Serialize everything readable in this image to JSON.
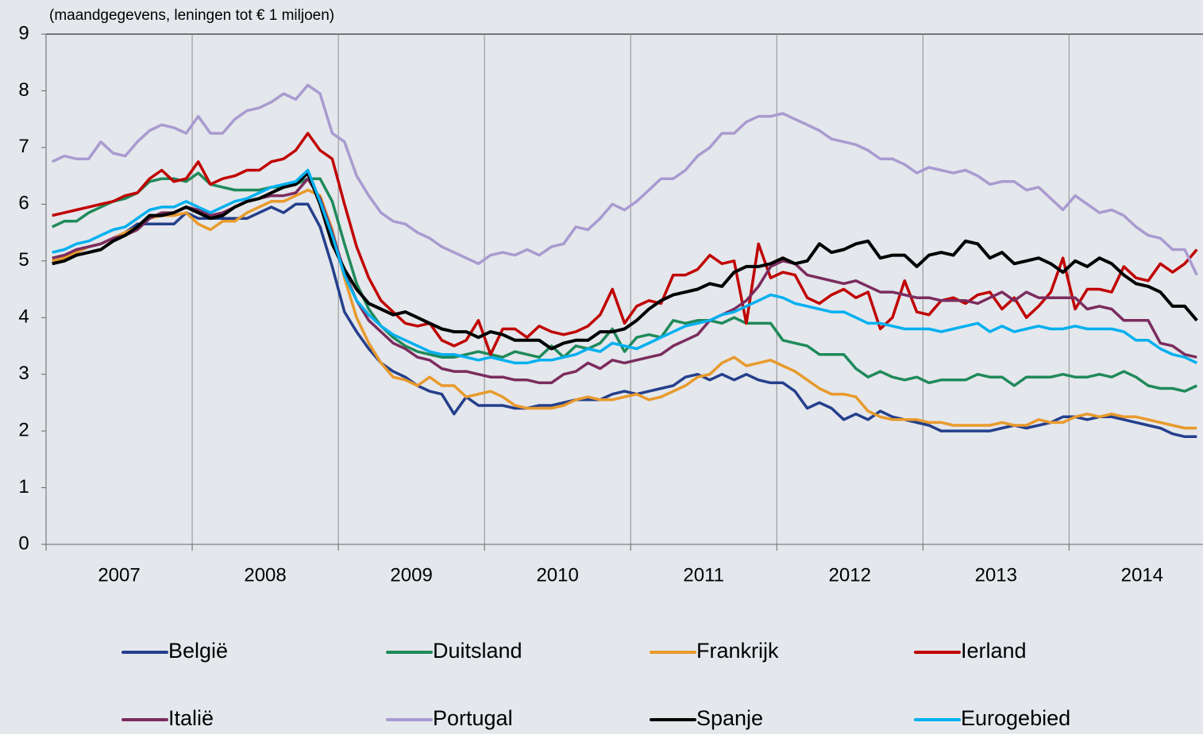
{
  "chart_data": {
    "type": "line",
    "title": "(maandgegevens, leningen tot € 1 miljoen)",
    "categories": [
      null,
      null,
      null,
      null,
      null,
      null,
      "2007",
      null,
      null,
      null,
      null,
      null,
      null,
      null,
      null,
      null,
      null,
      null,
      "2008",
      null,
      null,
      null,
      null,
      null,
      null,
      null,
      null,
      null,
      null,
      null,
      "2009",
      null,
      null,
      null,
      null,
      null,
      null,
      null,
      null,
      null,
      null,
      null,
      "2010",
      null,
      null,
      null,
      null,
      null,
      null,
      null,
      null,
      null,
      null,
      null,
      "2011",
      null,
      null,
      null,
      null,
      null,
      null,
      null,
      null,
      null,
      null,
      null,
      "2012",
      null,
      null,
      null,
      null,
      null,
      null,
      null,
      null,
      null,
      null,
      null,
      "2013",
      null,
      null,
      null,
      null,
      null,
      null,
      null,
      null,
      null,
      null,
      null,
      "2014",
      null,
      null,
      null,
      null
    ],
    "ylim": [
      0,
      9
    ],
    "yticks": [
      0,
      1,
      2,
      3,
      4,
      5,
      6,
      7,
      8,
      9
    ],
    "series": [
      {
        "name": "België",
        "color": "#243f8c",
        "values": [
          5.0,
          5.05,
          5.15,
          5.25,
          5.3,
          5.4,
          5.5,
          5.65,
          5.65,
          5.65,
          5.65,
          5.85,
          5.75,
          5.75,
          5.75,
          5.75,
          5.75,
          5.85,
          5.95,
          5.85,
          6.0,
          6.0,
          5.6,
          4.9,
          4.1,
          3.75,
          3.45,
          3.2,
          3.05,
          2.95,
          2.8,
          2.7,
          2.65,
          2.3,
          2.6,
          2.45,
          2.45,
          2.45,
          2.4,
          2.4,
          2.45,
          2.45,
          2.5,
          2.55,
          2.55,
          2.55,
          2.65,
          2.7,
          2.65,
          2.7,
          2.75,
          2.8,
          2.95,
          3.0,
          2.9,
          3.0,
          2.9,
          3.0,
          2.9,
          2.85,
          2.85,
          2.7,
          2.4,
          2.5,
          2.4,
          2.2,
          2.3,
          2.2,
          2.35,
          2.25,
          2.2,
          2.15,
          2.1,
          2.0,
          2.0,
          2.0,
          2.0,
          2.0,
          2.05,
          2.1,
          2.05,
          2.1,
          2.15,
          2.25,
          2.25,
          2.2,
          2.25,
          2.25,
          2.2,
          2.15,
          2.1,
          2.05,
          1.95,
          1.9,
          1.9
        ]
      },
      {
        "name": "Duitsland",
        "color": "#1f8a5a",
        "values": [
          5.6,
          5.7,
          5.7,
          5.85,
          5.95,
          6.05,
          6.1,
          6.2,
          6.4,
          6.45,
          6.45,
          6.4,
          6.55,
          6.35,
          6.3,
          6.25,
          6.25,
          6.25,
          6.3,
          6.3,
          6.35,
          6.45,
          6.45,
          6.05,
          5.3,
          4.6,
          4.15,
          3.85,
          3.65,
          3.5,
          3.4,
          3.35,
          3.3,
          3.3,
          3.35,
          3.4,
          3.35,
          3.3,
          3.4,
          3.35,
          3.3,
          3.5,
          3.3,
          3.5,
          3.45,
          3.55,
          3.8,
          3.4,
          3.65,
          3.7,
          3.65,
          3.95,
          3.9,
          3.95,
          3.95,
          3.9,
          4.0,
          3.9,
          3.9,
          3.9,
          3.6,
          3.55,
          3.5,
          3.35,
          3.35,
          3.35,
          3.1,
          2.95,
          3.05,
          2.95,
          2.9,
          2.95,
          2.85,
          2.9,
          2.9,
          2.9,
          3.0,
          2.95,
          2.95,
          2.8,
          2.95,
          2.95,
          2.95,
          3.0,
          2.95,
          2.95,
          3.0,
          2.95,
          3.05,
          2.95,
          2.8,
          2.75,
          2.75,
          2.7,
          2.8
        ]
      },
      {
        "name": "Frankrijk",
        "color": "#e89a2c",
        "values": [
          5.0,
          5.05,
          5.15,
          5.25,
          5.3,
          5.4,
          5.5,
          5.6,
          5.75,
          5.8,
          5.8,
          5.85,
          5.65,
          5.55,
          5.7,
          5.7,
          5.85,
          5.95,
          6.05,
          6.05,
          6.15,
          6.25,
          6.15,
          5.55,
          4.7,
          4.0,
          3.55,
          3.2,
          2.95,
          2.9,
          2.8,
          2.95,
          2.8,
          2.8,
          2.6,
          2.65,
          2.7,
          2.6,
          2.45,
          2.4,
          2.4,
          2.4,
          2.45,
          2.55,
          2.6,
          2.55,
          2.55,
          2.6,
          2.65,
          2.55,
          2.6,
          2.7,
          2.8,
          2.95,
          3.0,
          3.2,
          3.3,
          3.15,
          3.2,
          3.25,
          3.15,
          3.05,
          2.9,
          2.75,
          2.65,
          2.65,
          2.6,
          2.35,
          2.25,
          2.2,
          2.2,
          2.2,
          2.15,
          2.15,
          2.1,
          2.1,
          2.1,
          2.1,
          2.15,
          2.1,
          2.1,
          2.2,
          2.15,
          2.15,
          2.25,
          2.3,
          2.25,
          2.3,
          2.25,
          2.25,
          2.2,
          2.15,
          2.1,
          2.05,
          2.05
        ]
      },
      {
        "name": "Ierland",
        "color": "#c00000",
        "values": [
          5.8,
          5.85,
          5.9,
          5.95,
          6.0,
          6.05,
          6.15,
          6.2,
          6.45,
          6.6,
          6.4,
          6.45,
          6.75,
          6.35,
          6.45,
          6.5,
          6.6,
          6.6,
          6.75,
          6.8,
          6.95,
          7.25,
          6.95,
          6.8,
          6.0,
          5.25,
          4.7,
          4.3,
          4.1,
          3.9,
          3.85,
          3.9,
          3.6,
          3.5,
          3.6,
          3.95,
          3.35,
          3.8,
          3.8,
          3.65,
          3.85,
          3.75,
          3.7,
          3.75,
          3.85,
          4.05,
          4.5,
          3.9,
          4.2,
          4.3,
          4.25,
          4.75,
          4.75,
          4.85,
          5.1,
          4.95,
          5.0,
          3.9,
          5.3,
          4.7,
          4.8,
          4.75,
          4.35,
          4.25,
          4.4,
          4.5,
          4.35,
          4.45,
          3.8,
          4.0,
          4.65,
          4.1,
          4.05,
          4.3,
          4.35,
          4.25,
          4.4,
          4.45,
          4.15,
          4.35,
          4.0,
          4.2,
          4.45,
          5.05,
          4.15,
          4.5,
          4.5,
          4.45,
          4.9,
          4.7,
          4.65,
          4.95,
          4.8,
          4.95,
          5.2
        ]
      },
      {
        "name": "Italië",
        "color": "#7b2c5e",
        "values": [
          5.05,
          5.1,
          5.2,
          5.25,
          5.3,
          5.4,
          5.45,
          5.55,
          5.75,
          5.85,
          5.85,
          5.95,
          5.9,
          5.8,
          5.85,
          5.95,
          6.05,
          6.1,
          6.15,
          6.15,
          6.2,
          6.45,
          6.1,
          5.5,
          4.8,
          4.3,
          3.95,
          3.75,
          3.55,
          3.45,
          3.3,
          3.25,
          3.1,
          3.05,
          3.05,
          3.0,
          2.95,
          2.95,
          2.9,
          2.9,
          2.85,
          2.85,
          3.0,
          3.05,
          3.2,
          3.1,
          3.25,
          3.2,
          3.25,
          3.3,
          3.35,
          3.5,
          3.6,
          3.7,
          3.95,
          4.05,
          4.15,
          4.3,
          4.55,
          4.9,
          5.0,
          4.95,
          4.75,
          4.7,
          4.65,
          4.6,
          4.65,
          4.55,
          4.45,
          4.45,
          4.4,
          4.35,
          4.35,
          4.3,
          4.3,
          4.3,
          4.25,
          4.35,
          4.45,
          4.3,
          4.45,
          4.35,
          4.35,
          4.35,
          4.35,
          4.15,
          4.2,
          4.15,
          3.95,
          3.95,
          3.95,
          3.55,
          3.5,
          3.35,
          3.3
        ]
      },
      {
        "name": "Portugal",
        "color": "#a99bd0",
        "values": [
          6.75,
          6.85,
          6.8,
          6.8,
          7.1,
          6.9,
          6.85,
          7.1,
          7.3,
          7.4,
          7.35,
          7.25,
          7.55,
          7.25,
          7.25,
          7.5,
          7.65,
          7.7,
          7.8,
          7.95,
          7.85,
          8.1,
          7.95,
          7.25,
          7.1,
          6.5,
          6.15,
          5.85,
          5.7,
          5.65,
          5.5,
          5.4,
          5.25,
          5.15,
          5.05,
          4.95,
          5.1,
          5.15,
          5.1,
          5.2,
          5.1,
          5.25,
          5.3,
          5.6,
          5.55,
          5.75,
          6.0,
          5.9,
          6.05,
          6.25,
          6.45,
          6.45,
          6.6,
          6.85,
          7.0,
          7.25,
          7.25,
          7.45,
          7.55,
          7.55,
          7.6,
          7.5,
          7.4,
          7.3,
          7.15,
          7.1,
          7.05,
          6.95,
          6.8,
          6.8,
          6.7,
          6.55,
          6.65,
          6.6,
          6.55,
          6.6,
          6.5,
          6.35,
          6.4,
          6.4,
          6.25,
          6.3,
          6.1,
          5.9,
          6.15,
          6.0,
          5.85,
          5.9,
          5.8,
          5.6,
          5.45,
          5.4,
          5.2,
          5.2,
          4.75
        ]
      },
      {
        "name": "Spanje",
        "color": "#000000",
        "values": [
          4.95,
          5.0,
          5.1,
          5.15,
          5.2,
          5.35,
          5.45,
          5.6,
          5.8,
          5.8,
          5.85,
          5.95,
          5.85,
          5.75,
          5.8,
          5.95,
          6.05,
          6.1,
          6.2,
          6.3,
          6.35,
          6.55,
          6.0,
          5.3,
          4.85,
          4.5,
          4.25,
          4.15,
          4.05,
          4.1,
          4.0,
          3.9,
          3.8,
          3.75,
          3.75,
          3.65,
          3.75,
          3.7,
          3.6,
          3.6,
          3.6,
          3.45,
          3.55,
          3.6,
          3.6,
          3.75,
          3.75,
          3.8,
          3.95,
          4.15,
          4.3,
          4.4,
          4.45,
          4.5,
          4.6,
          4.55,
          4.8,
          4.9,
          4.9,
          4.95,
          5.05,
          4.95,
          5.0,
          5.3,
          5.15,
          5.2,
          5.3,
          5.35,
          5.05,
          5.1,
          5.1,
          4.9,
          5.1,
          5.15,
          5.1,
          5.35,
          5.3,
          5.05,
          5.15,
          4.95,
          5.0,
          5.05,
          4.95,
          4.8,
          5.0,
          4.9,
          5.05,
          4.95,
          4.75,
          4.6,
          4.55,
          4.45,
          4.2,
          4.2,
          3.95
        ]
      },
      {
        "name": "Eurogebied",
        "color": "#00b0f0",
        "values": [
          5.15,
          5.2,
          5.3,
          5.35,
          5.45,
          5.55,
          5.6,
          5.75,
          5.9,
          5.95,
          5.95,
          6.05,
          5.95,
          5.85,
          5.95,
          6.05,
          6.1,
          6.2,
          6.3,
          6.35,
          6.4,
          6.6,
          6.05,
          5.45,
          4.75,
          4.3,
          4.05,
          3.85,
          3.7,
          3.6,
          3.5,
          3.4,
          3.35,
          3.35,
          3.3,
          3.25,
          3.3,
          3.25,
          3.2,
          3.2,
          3.25,
          3.25,
          3.3,
          3.35,
          3.45,
          3.4,
          3.55,
          3.5,
          3.45,
          3.55,
          3.65,
          3.75,
          3.85,
          3.9,
          3.95,
          4.05,
          4.1,
          4.2,
          4.3,
          4.4,
          4.35,
          4.25,
          4.2,
          4.15,
          4.1,
          4.1,
          4.0,
          3.9,
          3.9,
          3.85,
          3.8,
          3.8,
          3.8,
          3.75,
          3.8,
          3.85,
          3.9,
          3.75,
          3.85,
          3.75,
          3.8,
          3.85,
          3.8,
          3.8,
          3.85,
          3.8,
          3.8,
          3.8,
          3.75,
          3.6,
          3.6,
          3.45,
          3.35,
          3.3,
          3.2
        ]
      }
    ]
  }
}
